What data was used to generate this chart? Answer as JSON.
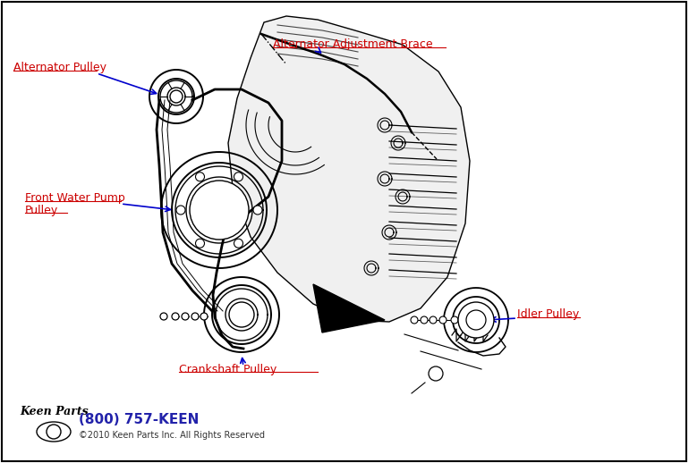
{
  "bg_color": "#ffffff",
  "labels": {
    "alternator_pulley": "Alternator Pulley",
    "alternator_brace": "Alternator Adjustment Brace",
    "water_pump_line1": "Front Water Pump",
    "water_pump_line2": "Pulley",
    "crankshaft": "Crankshaft Pulley",
    "idler": "Idler Pulley"
  },
  "label_color": "#cc0000",
  "arrow_color": "#0000cc",
  "line_color": "#000000",
  "footer_phone": "(800) 757-KEEN",
  "footer_copy": "©2010 Keen Parts Inc. All Rights Reserved",
  "footer_color": "#2222aa",
  "footer_copy_color": "#333333"
}
